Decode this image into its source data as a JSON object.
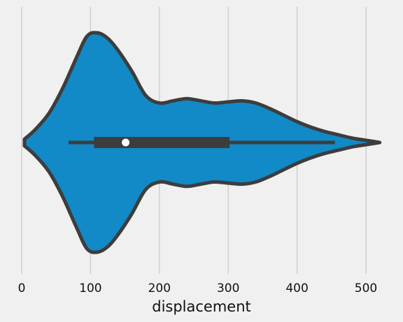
{
  "chart_data": {
    "type": "violin",
    "orientation": "horizontal",
    "xlabel": "displacement",
    "xlim": [
      -8,
      525
    ],
    "xticks": [
      0,
      100,
      200,
      300,
      400,
      500
    ],
    "grid": "vertical",
    "density_profile": {
      "x": [
        4,
        20,
        40,
        60,
        80,
        95,
        110,
        125,
        140,
        160,
        180,
        200,
        220,
        240,
        260,
        280,
        300,
        320,
        340,
        360,
        380,
        400,
        420,
        440,
        460,
        480,
        500,
        520
      ],
      "width": [
        0.03,
        0.12,
        0.27,
        0.5,
        0.78,
        0.97,
        1.0,
        0.95,
        0.84,
        0.65,
        0.43,
        0.36,
        0.38,
        0.4,
        0.38,
        0.36,
        0.37,
        0.38,
        0.36,
        0.31,
        0.25,
        0.19,
        0.14,
        0.1,
        0.07,
        0.04,
        0.02,
        0.0
      ]
    },
    "summary": {
      "whisker_low": 68,
      "q1": 105,
      "median": 151,
      "q3": 302,
      "whisker_high": 455
    },
    "colors": {
      "violin_fill": "#118ac7",
      "outline": "#3d3d3d",
      "median_dot": "#ffffff",
      "background": "#f0f0f0",
      "grid": "#cbcbcb"
    }
  }
}
